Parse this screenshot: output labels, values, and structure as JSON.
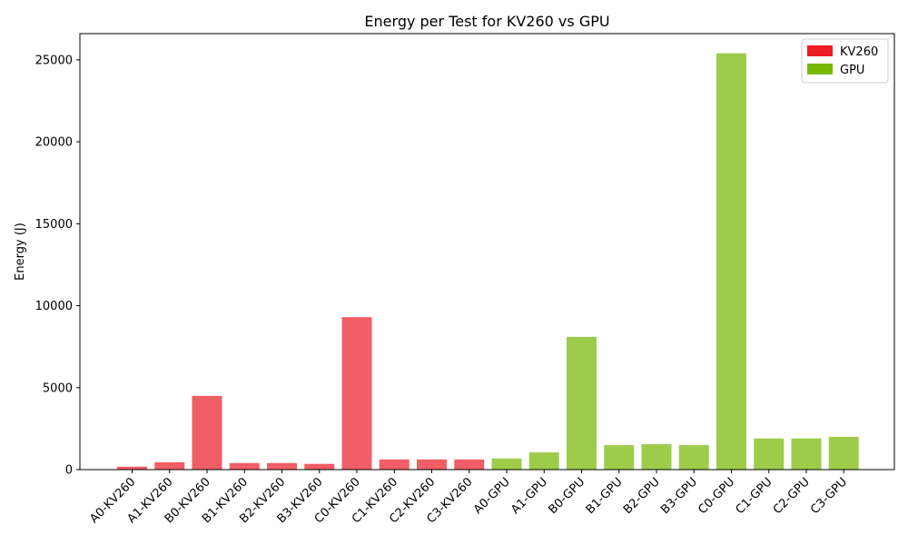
{
  "chart_data": {
    "type": "bar",
    "title": "Energy per Test for KV260 vs GPU",
    "xlabel": "",
    "ylabel": "Energy (J)",
    "ylim": [
      0,
      26600
    ],
    "yticks": [
      0,
      5000,
      10000,
      15000,
      20000,
      25000
    ],
    "categories": [
      "A0-KV260",
      "A1-KV260",
      "B0-KV260",
      "B1-KV260",
      "B2-KV260",
      "B3-KV260",
      "C0-KV260",
      "C1-KV260",
      "C2-KV260",
      "C3-KV260",
      "A0-GPU",
      "A1-GPU",
      "B0-GPU",
      "B1-GPU",
      "B2-GPU",
      "B3-GPU",
      "C0-GPU",
      "C1-GPU",
      "C2-GPU",
      "C3-GPU"
    ],
    "values": [
      180,
      450,
      4500,
      400,
      400,
      350,
      9300,
      620,
      620,
      620,
      680,
      1050,
      8100,
      1500,
      1550,
      1500,
      25400,
      1900,
      1900,
      2000
    ],
    "groups": [
      "KV260",
      "KV260",
      "KV260",
      "KV260",
      "KV260",
      "KV260",
      "KV260",
      "KV260",
      "KV260",
      "KV260",
      "GPU",
      "GPU",
      "GPU",
      "GPU",
      "GPU",
      "GPU",
      "GPU",
      "GPU",
      "GPU",
      "GPU"
    ],
    "legend": [
      {
        "name": "KV260",
        "color": "#ed1c24"
      },
      {
        "name": "GPU",
        "color": "#76b900"
      }
    ],
    "bar_colors": {
      "KV260": "#f25e66",
      "GPU": "#9dcc4b"
    },
    "legend_position": "top-right",
    "grid": false
  }
}
